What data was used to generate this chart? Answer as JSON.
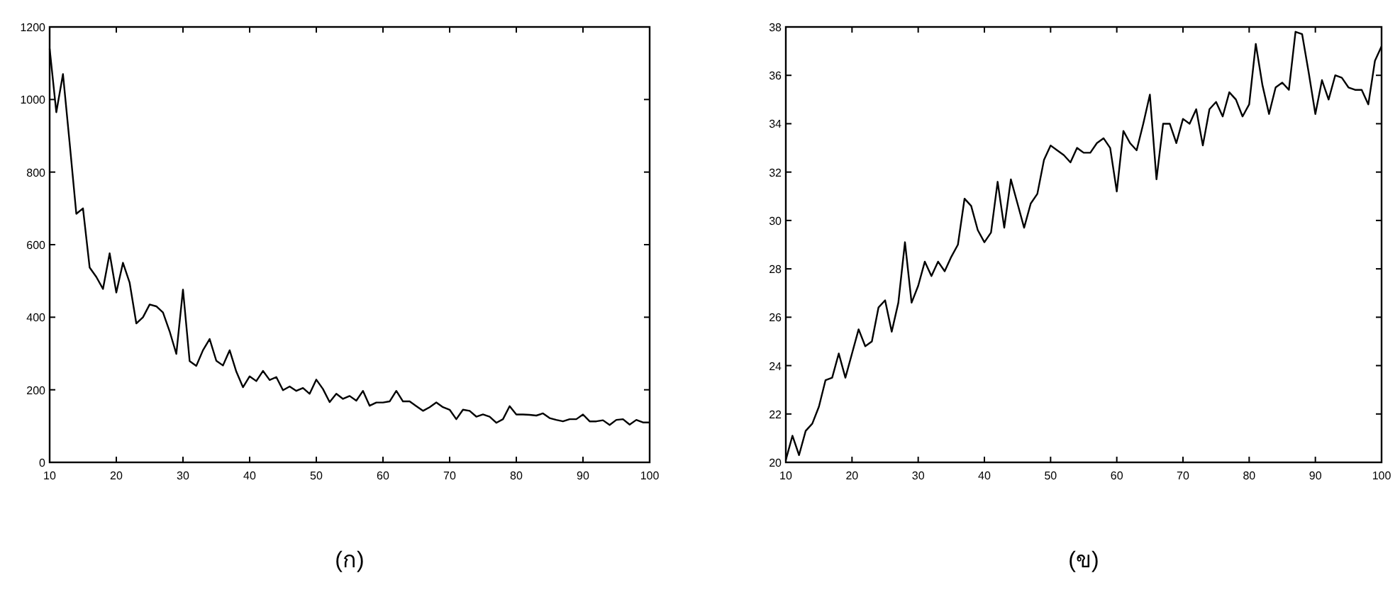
{
  "chart_data": [
    {
      "type": "line",
      "xlabel": "(ก)",
      "color": "#000000",
      "xlim": [
        10,
        100
      ],
      "ylim": [
        0,
        1200
      ],
      "xticks": [
        10,
        20,
        30,
        40,
        50,
        60,
        70,
        80,
        90,
        100
      ],
      "yticks": [
        0,
        200,
        400,
        600,
        800,
        1000,
        1200
      ],
      "x": [
        10,
        11,
        12,
        13,
        14,
        15,
        16,
        17,
        18,
        19,
        20,
        21,
        22,
        23,
        24,
        25,
        26,
        27,
        28,
        29,
        30,
        31,
        32,
        33,
        34,
        35,
        36,
        37,
        38,
        39,
        40,
        41,
        42,
        43,
        44,
        45,
        46,
        47,
        48,
        49,
        50,
        51,
        52,
        53,
        54,
        55,
        56,
        57,
        58,
        59,
        60,
        61,
        62,
        63,
        64,
        65,
        66,
        67,
        68,
        69,
        70,
        71,
        72,
        73,
        74,
        75,
        76,
        77,
        78,
        79,
        80,
        81,
        82,
        83,
        84,
        85,
        86,
        87,
        88,
        89,
        90,
        91,
        92,
        93,
        94,
        95,
        96,
        97,
        98,
        99,
        100
      ],
      "values": [
        1140,
        965,
        1070,
        880,
        685,
        700,
        537,
        511,
        478,
        576,
        468,
        550,
        495,
        383,
        400,
        435,
        430,
        413,
        361,
        299,
        476,
        279,
        266,
        309,
        340,
        280,
        267,
        309,
        250,
        207,
        237,
        224,
        252,
        227,
        235,
        199,
        209,
        197,
        205,
        189,
        228,
        202,
        166,
        189,
        175,
        183,
        170,
        197,
        156,
        165,
        165,
        168,
        197,
        168,
        168,
        155,
        142,
        152,
        165,
        152,
        145,
        119,
        145,
        142,
        126,
        132,
        126,
        109,
        119,
        155,
        132,
        132,
        131,
        129,
        135,
        122,
        117,
        113,
        119,
        119,
        132,
        113,
        113,
        116,
        103,
        117,
        119,
        104,
        117,
        110,
        110
      ]
    },
    {
      "type": "line",
      "xlabel": "(ข)",
      "color": "#000000",
      "xlim": [
        10,
        100
      ],
      "ylim": [
        20,
        38
      ],
      "xticks": [
        10,
        20,
        30,
        40,
        50,
        60,
        70,
        80,
        90,
        100
      ],
      "yticks": [
        20,
        22,
        24,
        26,
        28,
        30,
        32,
        34,
        36,
        38
      ],
      "x": [
        10,
        11,
        12,
        13,
        14,
        15,
        16,
        17,
        18,
        19,
        20,
        21,
        22,
        23,
        24,
        25,
        26,
        27,
        28,
        29,
        30,
        31,
        32,
        33,
        34,
        35,
        36,
        37,
        38,
        39,
        40,
        41,
        42,
        43,
        44,
        45,
        46,
        47,
        48,
        49,
        50,
        51,
        52,
        53,
        54,
        55,
        56,
        57,
        58,
        59,
        60,
        61,
        62,
        63,
        64,
        65,
        66,
        67,
        68,
        69,
        70,
        71,
        72,
        73,
        74,
        75,
        76,
        77,
        78,
        79,
        80,
        81,
        82,
        83,
        84,
        85,
        86,
        87,
        88,
        89,
        90,
        91,
        92,
        93,
        94,
        95,
        96,
        97,
        98,
        99,
        100
      ],
      "values": [
        20.1,
        21.1,
        20.3,
        21.3,
        21.6,
        22.3,
        23.4,
        23.5,
        24.5,
        23.5,
        24.5,
        25.5,
        24.8,
        25.0,
        26.4,
        26.7,
        25.4,
        26.6,
        29.1,
        26.6,
        27.3,
        28.3,
        27.7,
        28.3,
        27.9,
        28.5,
        29.0,
        30.9,
        30.6,
        29.6,
        29.1,
        29.5,
        31.6,
        29.7,
        31.7,
        30.7,
        29.7,
        30.7,
        31.1,
        32.5,
        33.1,
        32.9,
        32.7,
        32.4,
        33.0,
        32.8,
        32.8,
        33.2,
        33.4,
        33.0,
        31.2,
        33.7,
        33.2,
        32.9,
        34.0,
        35.2,
        31.7,
        34.0,
        34.0,
        33.2,
        34.2,
        34.0,
        34.6,
        33.1,
        34.6,
        34.9,
        34.3,
        35.3,
        35.0,
        34.3,
        34.8,
        37.3,
        35.6,
        34.4,
        35.5,
        35.7,
        35.4,
        37.8,
        37.7,
        36.1,
        34.4,
        35.8,
        35.0,
        36.0,
        35.9,
        35.5,
        35.4,
        35.4,
        34.8,
        36.6,
        37.2
      ]
    }
  ]
}
